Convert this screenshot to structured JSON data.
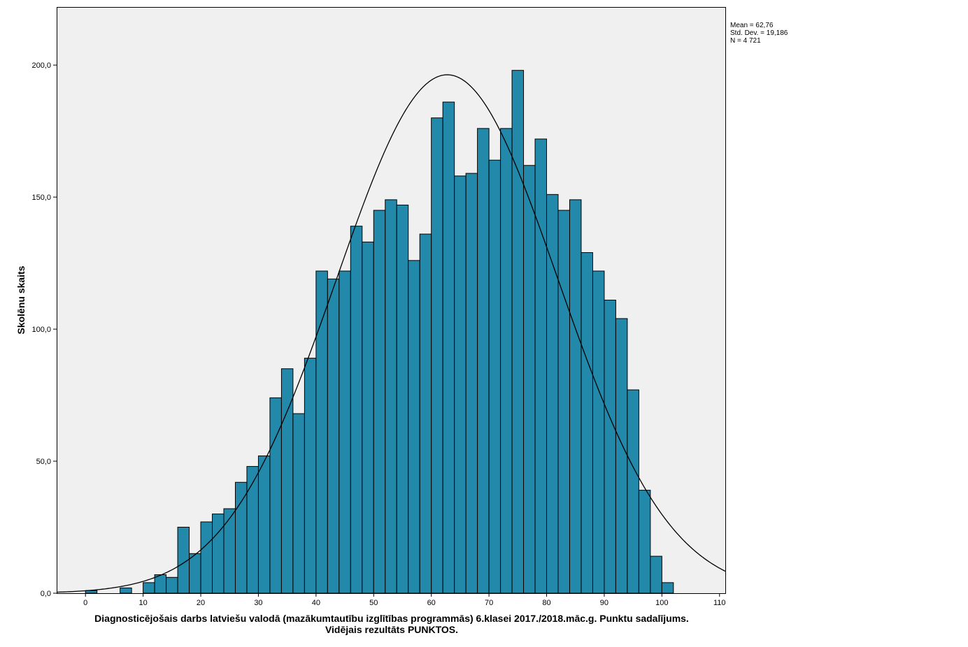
{
  "chart_data": {
    "type": "bar",
    "subtype": "histogram-with-normal-curve",
    "xlabel_line1": "Diagnosticējošais darbs latviešu valodā (mazākumtautību izglītības programmās) 6.klasei 2017./2018.māc.g. Punktu sadalījums.",
    "xlabel_line2": "Vidējais rezultāts PUNKTOS.",
    "ylabel": "Skolēnu skaits",
    "xlim": [
      -5,
      111
    ],
    "ylim": [
      0,
      222
    ],
    "x_ticks": [
      0,
      10,
      20,
      30,
      40,
      50,
      60,
      70,
      80,
      90,
      100,
      110
    ],
    "x_tick_labels": [
      "0",
      "10",
      "20",
      "30",
      "40",
      "50",
      "60",
      "70",
      "80",
      "90",
      "100",
      "110"
    ],
    "y_ticks": [
      0,
      50,
      100,
      150,
      200
    ],
    "y_tick_labels": [
      "0,0",
      "50,0",
      "100,0",
      "150,0",
      "200,0"
    ],
    "bin_width": 2,
    "bin_starts": [
      0,
      6,
      10,
      12,
      14,
      16,
      18,
      20,
      22,
      24,
      26,
      28,
      30,
      32,
      34,
      36,
      38,
      40,
      42,
      44,
      46,
      48,
      50,
      52,
      54,
      56,
      58,
      60,
      62,
      64,
      66,
      68,
      70,
      72,
      74,
      76,
      78,
      80,
      82,
      84,
      86,
      88,
      90,
      92,
      94,
      96,
      98,
      100
    ],
    "counts": [
      1,
      2,
      4,
      7,
      6,
      25,
      15,
      27,
      30,
      32,
      42,
      48,
      52,
      74,
      85,
      68,
      89,
      122,
      119,
      122,
      139,
      133,
      145,
      149,
      147,
      126,
      136,
      180,
      186,
      158,
      159,
      176,
      164,
      176,
      198,
      162,
      172,
      151,
      145,
      149,
      129,
      122,
      111,
      104,
      77,
      39,
      14,
      4
    ],
    "bar_color": "#2389aa",
    "plot_background": "#f0f0f0",
    "normal_curve": {
      "mean": 62.76,
      "std_dev": 19.186,
      "n": 4721
    },
    "stats_text": [
      "Mean = 62,76",
      "Std. Dev. = 19,186",
      "N = 4 721"
    ],
    "grid": false,
    "legend": "none"
  }
}
